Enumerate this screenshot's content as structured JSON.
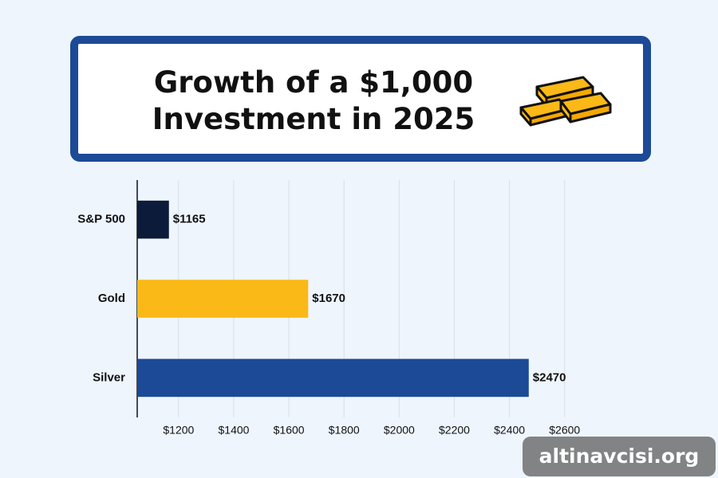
{
  "chart_data": {
    "type": "bar",
    "orientation": "horizontal",
    "title": "Growth of a $1,000 Investment in 2025",
    "categories": [
      "S&P 500",
      "Gold",
      "Silver"
    ],
    "values": [
      1165,
      1670,
      2470
    ],
    "value_labels": [
      "$1165",
      "$1670",
      "$2470"
    ],
    "colors": [
      "#0d1b3a",
      "#fbb917",
      "#1c4a96"
    ],
    "xlim": [
      1050,
      2650
    ],
    "xticks": [
      {
        "value": 1200,
        "label": "$1200"
      },
      {
        "value": 1400,
        "label": "$1400"
      },
      {
        "value": 1600,
        "label": "$1600"
      },
      {
        "value": 1800,
        "label": "$1800"
      },
      {
        "value": 2000,
        "label": "$2000"
      },
      {
        "value": 2200,
        "label": "$2200"
      },
      {
        "value": 2400,
        "label": "$2400"
      },
      {
        "value": 2600,
        "label": "$2600"
      }
    ],
    "grid": true
  },
  "watermark": "altinavcisi.org"
}
